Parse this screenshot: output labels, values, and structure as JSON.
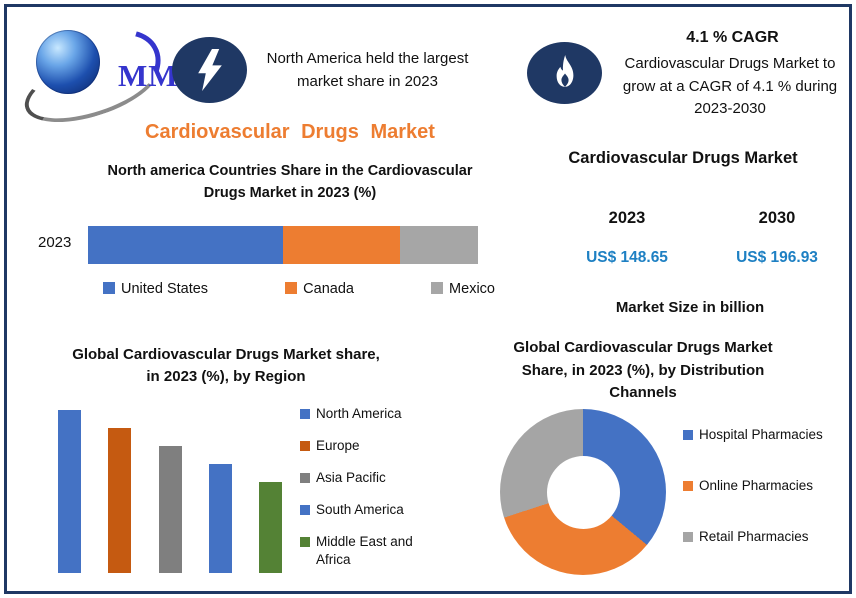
{
  "brand": {
    "logo_text": "MMR"
  },
  "colors": {
    "frame": "#1F3864",
    "heading_orange": "#ED7D31",
    "value_blue": "#1E80C3",
    "text": "#111111"
  },
  "header": {
    "highlight_icon": "lightning-icon",
    "highlight_note": "North America held the largest\nmarket share in 2023",
    "cagr_icon": "flame-icon",
    "cagr_title": "4.1 % CAGR",
    "cagr_note": "Cardiovascular Drugs Market to\ngrow at a CAGR of 4.1 % during\n2023-2030"
  },
  "main_title": "Cardiovascular Drugs Market",
  "market_size_panel": {
    "title": "Cardiovascular Drugs Market",
    "columns": [
      {
        "year": "2023",
        "value": "US$ 148.65"
      },
      {
        "year": "2030",
        "value": "US$ 196.93"
      }
    ],
    "unit_label": "Market Size in billion"
  },
  "chart_data": [
    {
      "type": "bar",
      "subtype": "horizontal-stacked",
      "title": "North america Countries Share in the  Cardiovascular\nDrugs Market in 2023 (%)",
      "categories": [
        "2023"
      ],
      "series": [
        {
          "name": "United States",
          "values": [
            50
          ],
          "color": "#4472C4"
        },
        {
          "name": "Canada",
          "values": [
            30
          ],
          "color": "#ED7D31"
        },
        {
          "name": "Mexico",
          "values": [
            20
          ],
          "color": "#A6A6A6"
        }
      ],
      "unit": "%",
      "axes": "none",
      "legend_position": "bottom"
    },
    {
      "type": "bar",
      "subtype": "vertical",
      "title": "Global Cardiovascular Drugs Market share,\nin 2023 (%), by Region",
      "categories": [
        "North America",
        "Europe",
        "Asia Pacific",
        "South America",
        "Middle East and Africa"
      ],
      "values": [
        36,
        32,
        28,
        24,
        20
      ],
      "colors": [
        "#4472C4",
        "#C55A11",
        "#7F7F7F",
        "#4472C4",
        "#548235"
      ],
      "unit": "%",
      "axes": "none",
      "legend_position": "right"
    },
    {
      "type": "pie",
      "subtype": "donut",
      "title": "Global Cardiovascular Drugs Market\nShare, in 2023 (%), by Distribution\nChannels",
      "categories": [
        "Hospital Pharmacies",
        "Online Pharmacies",
        "Retail Pharmacies"
      ],
      "values": [
        36,
        34,
        30
      ],
      "colors": [
        "#4472C4",
        "#ED7D31",
        "#A5A5A5"
      ],
      "unit": "%",
      "legend_position": "right"
    }
  ]
}
